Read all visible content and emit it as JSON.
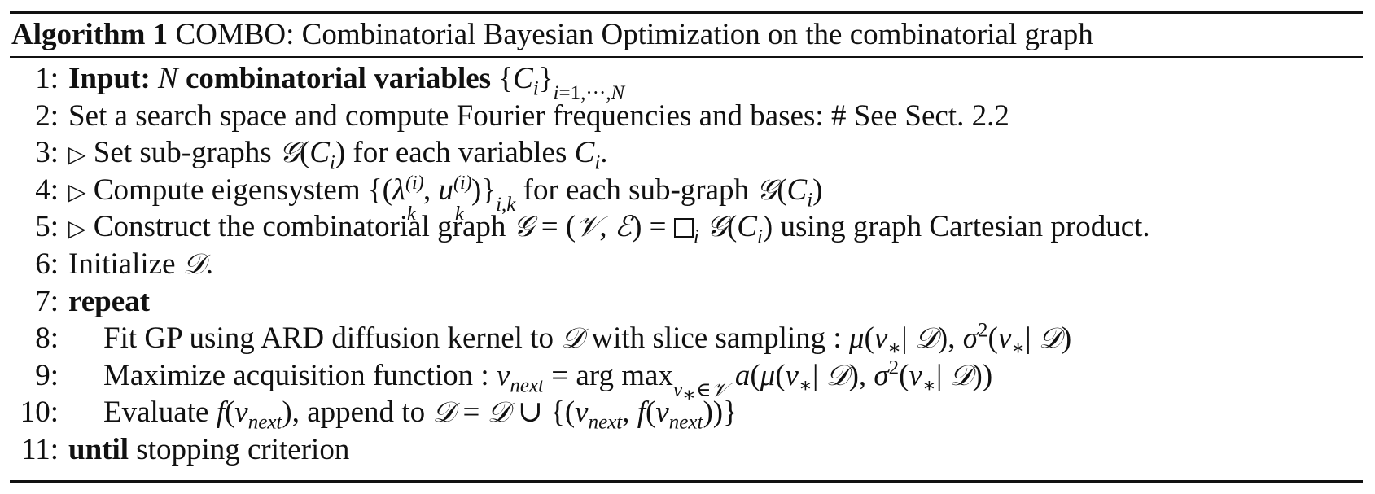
{
  "algorithm": {
    "label": "Algorithm 1",
    "title": "COMBO: Combinatorial Bayesian Optimization on the combinatorial graph",
    "lines": [
      {
        "num": "1:",
        "keyword": "Input:",
        "text": "N combinatorial variables {C_i}_{i=1,···,N}"
      },
      {
        "num": "2:",
        "text": "Set a search space and compute Fourier frequencies and bases: # See Sect. 2.2"
      },
      {
        "num": "3:",
        "text": "▷ Set sub-graphs 𝒢(C_i) for each variables C_i."
      },
      {
        "num": "4:",
        "text": "▷ Compute eigensystem {(λ_k^(i), u_k^(i))}_{i,k} for each sub-graph 𝒢(C_i)"
      },
      {
        "num": "5:",
        "text": "▷ Construct the combinatorial graph 𝒢 = (𝒱, ℰ) = □_i 𝒢(C_i) using graph Cartesian product."
      },
      {
        "num": "6:",
        "text": "Initialize 𝒟."
      },
      {
        "num": "7:",
        "keyword": "repeat",
        "text": ""
      },
      {
        "num": "8:",
        "text": "Fit GP using ARD diffusion kernel to 𝒟 with slice sampling : μ(v_*|𝒟), σ²(v_*|𝒟)"
      },
      {
        "num": "9:",
        "text": "Maximize acquisition function : v_next = arg max_{v_*∈𝒱} a(μ(v_*|𝒟), σ²(v_*|𝒟))"
      },
      {
        "num": "10:",
        "text": "Evaluate f(v_next), append to 𝒟 = 𝒟 ∪ {(v_next, f(v_next))}"
      },
      {
        "num": "11:",
        "keyword": "until",
        "text": "stopping criterion"
      }
    ]
  },
  "l1": {
    "kw": "Input:",
    "var": "N",
    "bold": "combinatorial variables"
  },
  "l2": {
    "text": "Set a search space and compute Fourier frequencies and bases: # See Sect. 2.2"
  },
  "l3": {
    "a": "Set sub-graphs",
    "b": "for each variables"
  },
  "l4": {
    "a": "Compute eigensystem",
    "b": "for each sub-graph"
  },
  "l5": {
    "a": "Construct the combinatorial graph",
    "b": "using graph Cartesian product."
  },
  "l6": {
    "a": "Initialize"
  },
  "l7": {
    "kw": "repeat"
  },
  "l8": {
    "a": "Fit GP using ARD diffusion kernel to",
    "b": "with slice sampling :"
  },
  "l9": {
    "a": "Maximize acquisition function :"
  },
  "l10": {
    "a": "Evaluate",
    "b": ", append to"
  },
  "l11": {
    "kw": "until",
    "a": "stopping criterion"
  }
}
